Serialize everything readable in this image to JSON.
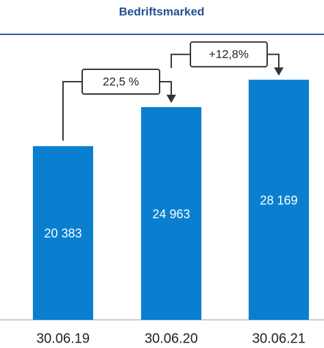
{
  "chart_data": {
    "type": "bar",
    "title": "Bedriftsmarked",
    "categories": [
      "30.06.19",
      "30.06.20",
      "30.06.21"
    ],
    "values": [
      20383,
      24963,
      28169
    ],
    "value_labels": [
      "20 383",
      "24 963",
      "28 169"
    ],
    "color": "#0a7fd0",
    "ylim": [
      0,
      33500
    ],
    "annotations": [
      "22,5 %",
      "+12,8%"
    ]
  }
}
